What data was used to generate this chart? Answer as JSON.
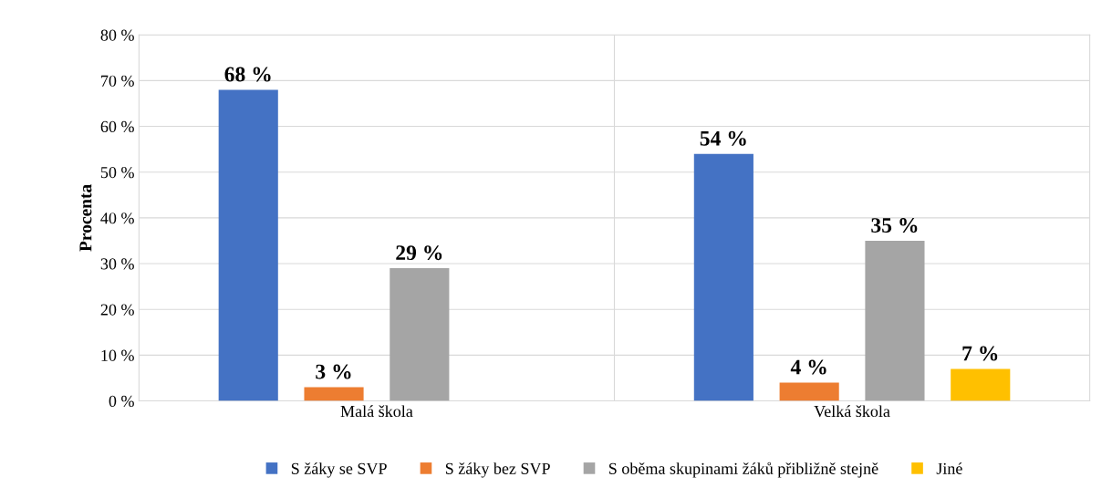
{
  "chart_data": {
    "type": "bar",
    "ylabel": "Procenta",
    "categories": [
      "Malá škola",
      "Velká škola"
    ],
    "series": [
      {
        "name": "S žáky se SVP",
        "color": "#4472c4",
        "values": [
          68,
          54
        ],
        "value_labels": [
          "68 %",
          "54 %"
        ]
      },
      {
        "name": "S žáky bez SVP",
        "color": "#ed7d31",
        "values": [
          3,
          4
        ],
        "value_labels": [
          "3 %",
          "4 %"
        ]
      },
      {
        "name": "S oběma skupinami žáků přibližně stejně",
        "color": "#a5a5a5",
        "values": [
          29,
          35
        ],
        "value_labels": [
          "29 %",
          "35 %"
        ]
      },
      {
        "name": "Jiné",
        "color": "#ffc000",
        "values": [
          null,
          7
        ],
        "value_labels": [
          null,
          "7 %"
        ]
      }
    ],
    "ylim": [
      0,
      80
    ],
    "yticks": [
      {
        "value": 0,
        "label": "0 %"
      },
      {
        "value": 10,
        "label": "10 %"
      },
      {
        "value": 20,
        "label": "20 %"
      },
      {
        "value": 30,
        "label": "30 %"
      },
      {
        "value": 40,
        "label": "40 %"
      },
      {
        "value": 50,
        "label": "50 %"
      },
      {
        "value": 60,
        "label": "60 %"
      },
      {
        "value": 70,
        "label": "70 %"
      },
      {
        "value": 80,
        "label": "80 %"
      }
    ],
    "grid": true,
    "legend": "bottom"
  }
}
